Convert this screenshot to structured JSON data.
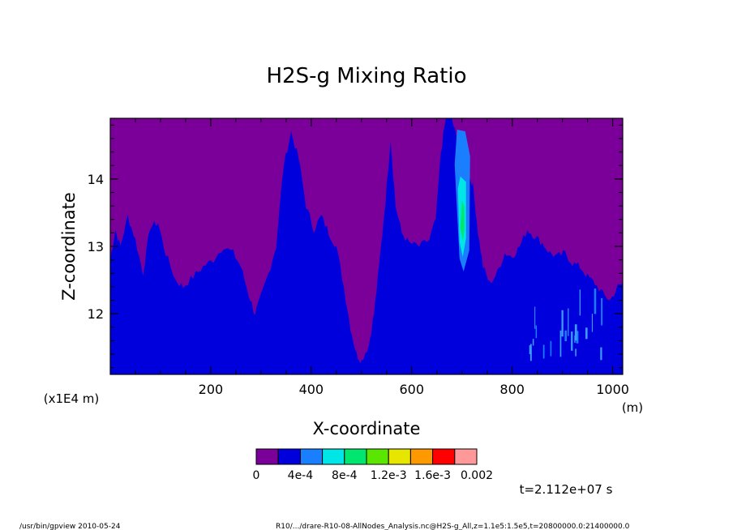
{
  "chart_data": {
    "type": "heatmap",
    "title": "H2S-g Mixing Ratio",
    "xlabel": "X-coordinate",
    "ylabel": "Z-coordinate",
    "x_unit": "(m)",
    "y_scale_note": "(x1E4 m)",
    "xlim": [
      0,
      1020
    ],
    "ylim": [
      11.1,
      14.9
    ],
    "x_ticks": [
      "200",
      "400",
      "600",
      "800",
      "1000"
    ],
    "y_ticks": [
      "12",
      "13",
      "14"
    ],
    "x_tick_values": [
      200,
      400,
      600,
      800,
      1000
    ],
    "y_tick_values": [
      12,
      13,
      14
    ],
    "time_label": "t=2.112e+07 s",
    "colorbar": {
      "colors": [
        "#7b0099",
        "#0000dd",
        "#1a7fff",
        "#00e6e6",
        "#00e66e",
        "#5ae600",
        "#e6e600",
        "#ff9900",
        "#ff0000",
        "#ff9999"
      ],
      "labels": [
        "0",
        "4e-4",
        "8e-4",
        "1.2e-3",
        "1.6e-3",
        "0.002"
      ]
    },
    "boundary_profile": [
      [
        0,
        12.8
      ],
      [
        10,
        13.25
      ],
      [
        20,
        13.0
      ],
      [
        35,
        13.45
      ],
      [
        50,
        13.1
      ],
      [
        65,
        12.6
      ],
      [
        80,
        13.3
      ],
      [
        95,
        13.35
      ],
      [
        110,
        12.9
      ],
      [
        130,
        12.5
      ],
      [
        145,
        12.4
      ],
      [
        165,
        12.55
      ],
      [
        185,
        12.7
      ],
      [
        205,
        12.8
      ],
      [
        225,
        13.0
      ],
      [
        245,
        12.9
      ],
      [
        260,
        12.7
      ],
      [
        275,
        12.3
      ],
      [
        288,
        12.0
      ],
      [
        300,
        12.25
      ],
      [
        315,
        12.6
      ],
      [
        330,
        13.0
      ],
      [
        345,
        14.2
      ],
      [
        360,
        14.7
      ],
      [
        375,
        14.3
      ],
      [
        390,
        13.6
      ],
      [
        405,
        13.25
      ],
      [
        420,
        13.45
      ],
      [
        435,
        13.2
      ],
      [
        450,
        13.0
      ],
      [
        465,
        12.4
      ],
      [
        478,
        11.8
      ],
      [
        490,
        11.4
      ],
      [
        500,
        11.3
      ],
      [
        515,
        11.55
      ],
      [
        525,
        12.0
      ],
      [
        535,
        12.7
      ],
      [
        548,
        13.7
      ],
      [
        558,
        14.6
      ],
      [
        568,
        13.6
      ],
      [
        580,
        13.2
      ],
      [
        595,
        13.05
      ],
      [
        615,
        13.0
      ],
      [
        635,
        13.1
      ],
      [
        648,
        13.4
      ],
      [
        658,
        14.4
      ],
      [
        668,
        14.9
      ],
      [
        680,
        14.9
      ],
      [
        692,
        14.5
      ],
      [
        702,
        14.0
      ],
      [
        712,
        14.1
      ],
      [
        722,
        13.9
      ],
      [
        732,
        13.2
      ],
      [
        742,
        12.7
      ],
      [
        755,
        12.45
      ],
      [
        770,
        12.6
      ],
      [
        785,
        12.9
      ],
      [
        800,
        12.85
      ],
      [
        815,
        13.0
      ],
      [
        830,
        13.25
      ],
      [
        845,
        13.15
      ],
      [
        860,
        13.05
      ],
      [
        875,
        12.9
      ],
      [
        890,
        12.85
      ],
      [
        905,
        12.9
      ],
      [
        920,
        12.75
      ],
      [
        935,
        12.7
      ],
      [
        950,
        12.55
      ],
      [
        965,
        12.45
      ],
      [
        980,
        12.3
      ],
      [
        995,
        12.2
      ],
      [
        1010,
        12.4
      ],
      [
        1020,
        12.45
      ]
    ],
    "plume": {
      "x": 700,
      "z_range": [
        12.7,
        14.7
      ],
      "max_value": "1.2e-3"
    },
    "light_streaks_x_range": [
      820,
      990
    ]
  },
  "footer": {
    "left": "/usr/bin/gpview  2010-05-24",
    "right": "R10/.../drare-R10-08-AllNodes_Analysis.nc@H2S-g_All,z=1.1e5:1.5e5,t=20800000.0:21400000.0"
  }
}
